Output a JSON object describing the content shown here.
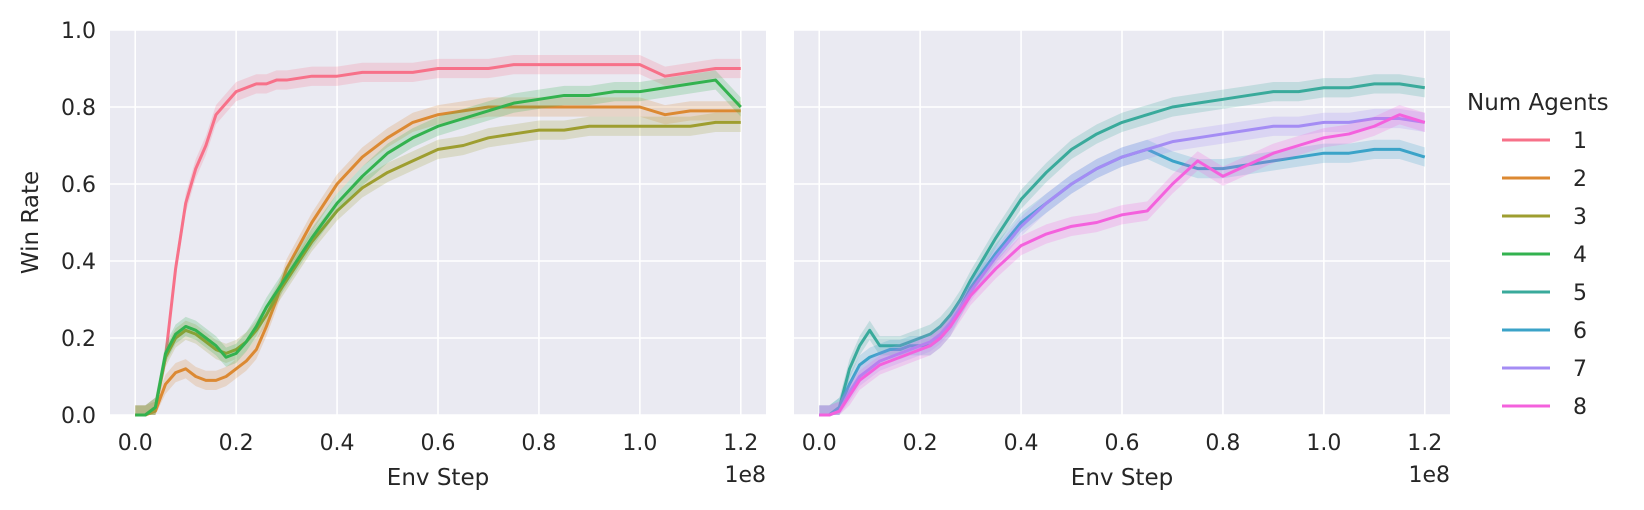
{
  "chart_data": [
    {
      "type": "line",
      "panel": "left",
      "xlabel": "Env Step",
      "ylabel": "Win Rate",
      "x_multiplier": "1e8",
      "xlim": [
        -0.05,
        1.25
      ],
      "ylim": [
        0,
        1.0
      ],
      "xticks": [
        "0.0",
        "0.2",
        "0.4",
        "0.6",
        "0.8",
        "1.0",
        "1.2"
      ],
      "yticks": [
        "0.0",
        "0.2",
        "0.4",
        "0.6",
        "0.8",
        "1.0"
      ],
      "grid": true,
      "x": [
        0.0,
        0.02,
        0.04,
        0.06,
        0.08,
        0.1,
        0.12,
        0.14,
        0.16,
        0.18,
        0.2,
        0.22,
        0.24,
        0.26,
        0.28,
        0.3,
        0.35,
        0.4,
        0.45,
        0.5,
        0.55,
        0.6,
        0.65,
        0.7,
        0.75,
        0.8,
        0.85,
        0.9,
        0.95,
        1.0,
        1.05,
        1.1,
        1.15,
        1.2
      ],
      "series": [
        {
          "name": "1",
          "color": "#f77189",
          "values": [
            0.0,
            0.0,
            0.02,
            0.15,
            0.38,
            0.55,
            0.64,
            0.7,
            0.78,
            0.81,
            0.84,
            0.85,
            0.86,
            0.86,
            0.87,
            0.87,
            0.88,
            0.88,
            0.89,
            0.89,
            0.89,
            0.9,
            0.9,
            0.9,
            0.91,
            0.91,
            0.91,
            0.91,
            0.91,
            0.91,
            0.88,
            0.89,
            0.9,
            0.9
          ]
        },
        {
          "name": "2",
          "color": "#dc8932",
          "values": [
            0.0,
            0.0,
            0.01,
            0.08,
            0.11,
            0.12,
            0.1,
            0.09,
            0.09,
            0.1,
            0.12,
            0.14,
            0.17,
            0.23,
            0.3,
            0.38,
            0.5,
            0.6,
            0.67,
            0.72,
            0.76,
            0.78,
            0.79,
            0.8,
            0.8,
            0.8,
            0.8,
            0.8,
            0.8,
            0.8,
            0.78,
            0.79,
            0.79,
            0.79
          ]
        },
        {
          "name": "3",
          "color": "#9e9e30",
          "values": [
            0.0,
            0.0,
            0.02,
            0.15,
            0.2,
            0.22,
            0.21,
            0.19,
            0.17,
            0.16,
            0.17,
            0.19,
            0.22,
            0.26,
            0.31,
            0.35,
            0.45,
            0.53,
            0.59,
            0.63,
            0.66,
            0.69,
            0.7,
            0.72,
            0.73,
            0.74,
            0.74,
            0.75,
            0.75,
            0.75,
            0.75,
            0.75,
            0.76,
            0.76
          ]
        },
        {
          "name": "4",
          "color": "#33b24f",
          "values": [
            0.0,
            0.0,
            0.02,
            0.16,
            0.21,
            0.23,
            0.22,
            0.2,
            0.18,
            0.15,
            0.16,
            0.19,
            0.23,
            0.28,
            0.32,
            0.36,
            0.46,
            0.55,
            0.62,
            0.68,
            0.72,
            0.75,
            0.77,
            0.79,
            0.81,
            0.82,
            0.83,
            0.83,
            0.84,
            0.84,
            0.85,
            0.86,
            0.87,
            0.8
          ]
        }
      ]
    },
    {
      "type": "line",
      "panel": "right",
      "xlabel": "Env Step",
      "ylabel": "",
      "x_multiplier": "1e8",
      "xlim": [
        -0.05,
        1.25
      ],
      "ylim": [
        0,
        1.0
      ],
      "xticks": [
        "0.0",
        "0.2",
        "0.4",
        "0.6",
        "0.8",
        "1.0",
        "1.2"
      ],
      "grid": true,
      "x": [
        0.0,
        0.02,
        0.04,
        0.06,
        0.08,
        0.1,
        0.12,
        0.14,
        0.16,
        0.18,
        0.2,
        0.22,
        0.24,
        0.26,
        0.28,
        0.3,
        0.35,
        0.4,
        0.45,
        0.5,
        0.55,
        0.6,
        0.65,
        0.7,
        0.75,
        0.8,
        0.85,
        0.9,
        0.95,
        1.0,
        1.05,
        1.1,
        1.15,
        1.2
      ],
      "series": [
        {
          "name": "5",
          "color": "#39aa9b",
          "values": [
            0.0,
            0.0,
            0.02,
            0.12,
            0.18,
            0.22,
            0.18,
            0.18,
            0.18,
            0.19,
            0.2,
            0.21,
            0.23,
            0.26,
            0.3,
            0.35,
            0.46,
            0.56,
            0.63,
            0.69,
            0.73,
            0.76,
            0.78,
            0.8,
            0.81,
            0.82,
            0.83,
            0.84,
            0.84,
            0.85,
            0.85,
            0.86,
            0.86,
            0.85
          ]
        },
        {
          "name": "6",
          "color": "#3ba3c8",
          "values": [
            0.0,
            0.0,
            0.02,
            0.08,
            0.13,
            0.15,
            0.16,
            0.17,
            0.17,
            0.18,
            0.18,
            0.18,
            0.2,
            0.23,
            0.28,
            0.33,
            0.42,
            0.5,
            0.55,
            0.6,
            0.64,
            0.67,
            0.69,
            0.66,
            0.64,
            0.64,
            0.65,
            0.66,
            0.67,
            0.68,
            0.68,
            0.69,
            0.69,
            0.67
          ]
        },
        {
          "name": "7",
          "color": "#a48cf4",
          "values": [
            0.0,
            0.0,
            0.01,
            0.06,
            0.1,
            0.12,
            0.14,
            0.15,
            0.16,
            0.17,
            0.18,
            0.19,
            0.21,
            0.24,
            0.28,
            0.32,
            0.41,
            0.49,
            0.55,
            0.6,
            0.64,
            0.67,
            0.69,
            0.71,
            0.72,
            0.73,
            0.74,
            0.75,
            0.75,
            0.76,
            0.76,
            0.77,
            0.77,
            0.76
          ]
        },
        {
          "name": "8",
          "color": "#f461dd",
          "values": [
            0.0,
            0.0,
            0.01,
            0.05,
            0.09,
            0.11,
            0.13,
            0.14,
            0.15,
            0.16,
            0.17,
            0.18,
            0.2,
            0.23,
            0.27,
            0.31,
            0.38,
            0.44,
            0.47,
            0.49,
            0.5,
            0.52,
            0.53,
            0.6,
            0.66,
            0.62,
            0.65,
            0.68,
            0.7,
            0.72,
            0.73,
            0.75,
            0.78,
            0.76
          ]
        }
      ]
    }
  ],
  "legend": {
    "title": "Num Agents",
    "placement": "right",
    "items": [
      {
        "label": "1",
        "color": "#f77189"
      },
      {
        "label": "2",
        "color": "#dc8932"
      },
      {
        "label": "3",
        "color": "#9e9e30"
      },
      {
        "label": "4",
        "color": "#33b24f"
      },
      {
        "label": "5",
        "color": "#39aa9b"
      },
      {
        "label": "6",
        "color": "#3ba3c8"
      },
      {
        "label": "7",
        "color": "#a48cf4"
      },
      {
        "label": "8",
        "color": "#f461dd"
      }
    ]
  },
  "colors": {
    "panel_background": "#eaeaf2",
    "grid": "#ffffff",
    "text": "#262626"
  }
}
